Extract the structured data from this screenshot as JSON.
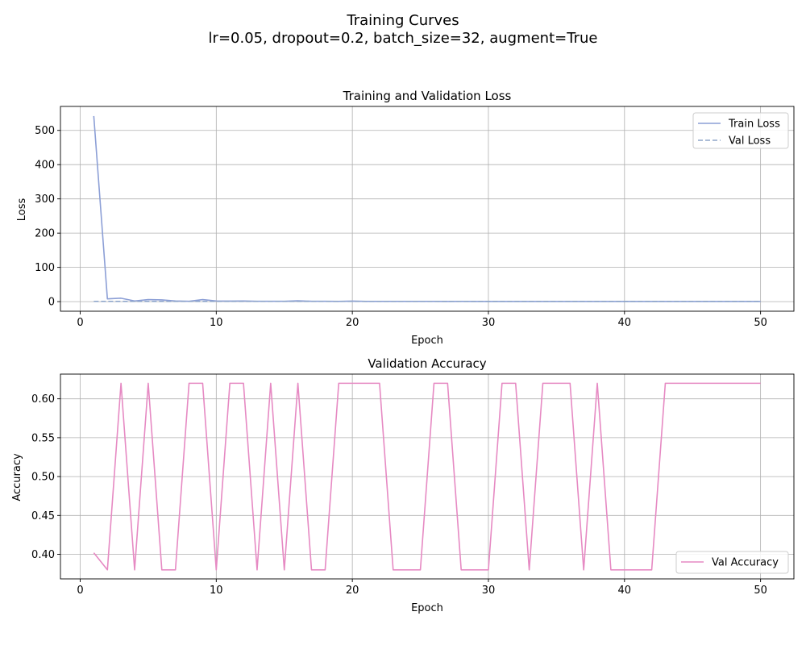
{
  "figure": {
    "suptitle_line1": "Training Curves",
    "suptitle_line2": "lr=0.05, dropout=0.2, batch_size=32, augment=True"
  },
  "chart_data": [
    {
      "type": "line",
      "title": "Training and Validation Loss",
      "xlabel": "Epoch",
      "ylabel": "Loss",
      "xlim": [
        -1.45,
        52.45
      ],
      "ylim": [
        -28,
        570
      ],
      "xticks": [
        0,
        10,
        20,
        30,
        40,
        50
      ],
      "yticks": [
        0,
        100,
        200,
        300,
        400,
        500
      ],
      "grid": true,
      "legend_position": "upper right",
      "x": [
        1,
        2,
        3,
        4,
        5,
        6,
        7,
        8,
        9,
        10,
        11,
        12,
        13,
        14,
        15,
        16,
        17,
        18,
        19,
        20,
        21,
        22,
        23,
        24,
        25,
        26,
        27,
        28,
        29,
        30,
        31,
        32,
        33,
        34,
        35,
        36,
        37,
        38,
        39,
        40,
        41,
        42,
        43,
        44,
        45,
        46,
        47,
        48,
        49,
        50
      ],
      "series": [
        {
          "name": "Train Loss",
          "color": "#8c9fd6",
          "dash": "solid",
          "values": [
            542,
            8,
            10,
            2,
            6,
            5,
            2,
            1,
            6,
            2,
            1.5,
            2,
            1,
            1,
            1,
            2.5,
            1,
            1,
            0.8,
            1.5,
            0.8,
            0.8,
            0.6,
            0.6,
            0.6,
            0.6,
            0.5,
            0.6,
            0.5,
            0.5,
            0.5,
            0.5,
            0.5,
            0.5,
            0.5,
            0.5,
            0.5,
            0.5,
            0.5,
            0.5,
            0.5,
            0.5,
            0.5,
            0.5,
            0.5,
            0.5,
            0.5,
            0.5,
            0.5,
            0.5
          ]
        },
        {
          "name": "Val Loss",
          "color": "#8fa6c9",
          "dash": "dashed",
          "values": [
            0.8,
            0.8,
            0.7,
            0.8,
            0.7,
            0.8,
            0.8,
            0.7,
            0.7,
            0.8,
            0.7,
            0.7,
            0.8,
            0.7,
            0.8,
            0.7,
            0.8,
            0.8,
            0.7,
            0.7,
            0.7,
            0.7,
            0.8,
            0.8,
            0.8,
            0.7,
            0.7,
            0.8,
            0.8,
            0.8,
            0.7,
            0.7,
            0.8,
            0.7,
            0.7,
            0.7,
            0.8,
            0.7,
            0.8,
            0.8,
            0.8,
            0.8,
            0.7,
            0.7,
            0.7,
            0.7,
            0.7,
            0.7,
            0.7,
            0.7
          ]
        }
      ]
    },
    {
      "type": "line",
      "title": "Validation Accuracy",
      "xlabel": "Epoch",
      "ylabel": "Accuracy",
      "xlim": [
        -1.45,
        52.45
      ],
      "ylim": [
        0.3684,
        0.6318
      ],
      "xticks": [
        0,
        10,
        20,
        30,
        40,
        50
      ],
      "yticks": [
        0.4,
        0.45,
        0.5,
        0.55,
        0.6
      ],
      "ytick_labels": [
        "0.40",
        "0.45",
        "0.50",
        "0.55",
        "0.60"
      ],
      "grid": true,
      "legend_position": "lower right",
      "x": [
        1,
        2,
        3,
        4,
        5,
        6,
        7,
        8,
        9,
        10,
        11,
        12,
        13,
        14,
        15,
        16,
        17,
        18,
        19,
        20,
        21,
        22,
        23,
        24,
        25,
        26,
        27,
        28,
        29,
        30,
        31,
        32,
        33,
        34,
        35,
        36,
        37,
        38,
        39,
        40,
        41,
        42,
        43,
        44,
        45,
        46,
        47,
        48,
        49,
        50
      ],
      "series": [
        {
          "name": "Val Accuracy",
          "color": "#e68ac3",
          "dash": "solid",
          "values": [
            0.402,
            0.38,
            0.62,
            0.38,
            0.62,
            0.38,
            0.38,
            0.62,
            0.62,
            0.38,
            0.62,
            0.62,
            0.38,
            0.62,
            0.38,
            0.62,
            0.38,
            0.38,
            0.62,
            0.62,
            0.62,
            0.62,
            0.38,
            0.38,
            0.38,
            0.62,
            0.62,
            0.38,
            0.38,
            0.38,
            0.62,
            0.62,
            0.38,
            0.62,
            0.62,
            0.62,
            0.38,
            0.62,
            0.38,
            0.38,
            0.38,
            0.38,
            0.62,
            0.62,
            0.62,
            0.62,
            0.62,
            0.62,
            0.62,
            0.62
          ]
        }
      ]
    }
  ]
}
